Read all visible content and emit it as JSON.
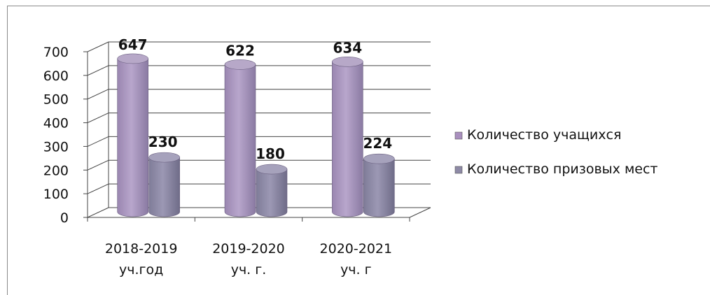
{
  "chart_data": {
    "type": "bar",
    "style": "3d-cylinder",
    "categories": [
      [
        "2018-2019",
        "уч.год"
      ],
      [
        "2019-2020",
        "уч. г."
      ],
      [
        "2020-2021",
        "уч. г"
      ]
    ],
    "series": [
      {
        "name": "Количество учащихся",
        "values": [
          647,
          622,
          634
        ],
        "color": "#a98fbe"
      },
      {
        "name": "Количество призовых мест",
        "values": [
          230,
          180,
          224
        ],
        "color": "#8e8aa6"
      }
    ],
    "ylim": [
      0,
      700
    ],
    "yticks": [
      "0",
      "100",
      "200",
      "300",
      "400",
      "500",
      "600",
      "700"
    ],
    "grid": true,
    "legend_position": "right"
  }
}
